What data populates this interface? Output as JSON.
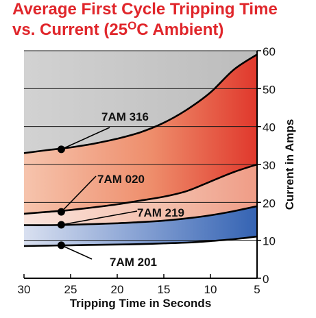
{
  "chart_data": {
    "type": "area",
    "title_line1": "Average First Cycle Tripping Time",
    "title_line2_pre": "vs. Current (25",
    "title_line2_deg": "O",
    "title_line2_post": "C Ambient)",
    "xlabel": "Tripping Time in Seconds",
    "ylabel": "Current in Amps",
    "xlim": [
      30,
      5
    ],
    "ylim": [
      0,
      60
    ],
    "x_ticks": [
      30,
      25,
      20,
      15,
      10,
      5
    ],
    "y_ticks": [
      0,
      10,
      20,
      30,
      40,
      50,
      60
    ],
    "grid": "horizontal",
    "series": [
      {
        "name": "7AM 316",
        "color": "#e8623a",
        "points": [
          [
            30,
            33
          ],
          [
            27.5,
            33.8
          ],
          [
            25,
            34.5
          ],
          [
            22.5,
            35.5
          ],
          [
            20,
            36.8
          ],
          [
            17.5,
            38.5
          ],
          [
            15,
            41
          ],
          [
            12.5,
            44.5
          ],
          [
            10,
            49
          ],
          [
            7.5,
            55
          ],
          [
            5,
            59
          ]
        ],
        "marker": [
          26,
          34
        ]
      },
      {
        "name": "7AM 020",
        "color": "#f1b8a5",
        "points": [
          [
            30,
            17
          ],
          [
            27.5,
            17.5
          ],
          [
            25,
            18
          ],
          [
            22.5,
            18.7
          ],
          [
            20,
            19.5
          ],
          [
            17.5,
            20.5
          ],
          [
            15,
            21.5
          ],
          [
            12.5,
            23
          ],
          [
            10,
            25.5
          ],
          [
            7.5,
            28
          ],
          [
            5,
            30
          ]
        ],
        "marker": [
          26,
          17.5
        ]
      },
      {
        "name": "7AM 219",
        "color": "#4a6fb5",
        "points": [
          [
            30,
            14
          ],
          [
            27.5,
            14
          ],
          [
            25,
            14.1
          ],
          [
            22.5,
            14.3
          ],
          [
            20,
            14.5
          ],
          [
            17.5,
            14.8
          ],
          [
            15,
            15.2
          ],
          [
            12.5,
            15.8
          ],
          [
            10,
            16.6
          ],
          [
            7.5,
            17.7
          ],
          [
            5,
            19
          ]
        ],
        "marker": [
          26,
          14.1
        ]
      },
      {
        "name": "7AM 201",
        "color": "#ffffff",
        "points": [
          [
            30,
            8.5
          ],
          [
            27.5,
            8.6
          ],
          [
            25,
            8.7
          ],
          [
            22.5,
            8.8
          ],
          [
            20,
            8.9
          ],
          [
            17.5,
            9.0
          ],
          [
            15,
            9.2
          ],
          [
            12.5,
            9.4
          ],
          [
            10,
            9.8
          ],
          [
            7.5,
            10.3
          ],
          [
            5,
            11
          ]
        ],
        "marker": [
          26,
          8.7
        ]
      }
    ]
  }
}
